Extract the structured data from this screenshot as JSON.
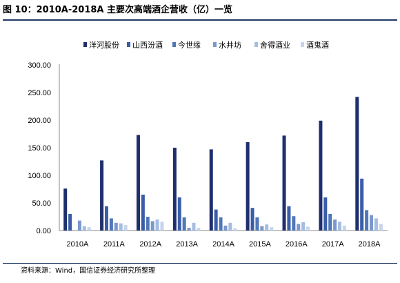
{
  "figure": {
    "title": "图 10：2010A-2018A 主要次高端酒企营收（亿）一览",
    "source": "资料来源：Wind，国信证券经济研究所整理"
  },
  "colors": {
    "rule": "#1f3864",
    "axis": "#888888",
    "series": [
      "#1f2f6e",
      "#3a5da8",
      "#5077b8",
      "#7b98cc",
      "#a6bde2",
      "#c7d4ec"
    ]
  },
  "chart_data": {
    "type": "bar",
    "title": "",
    "xlabel": "",
    "ylabel": "",
    "categories": [
      "2010A",
      "2011A",
      "2012A",
      "2013A",
      "2014A",
      "2015A",
      "2016A",
      "2017A",
      "2018A"
    ],
    "ylim": [
      0,
      300
    ],
    "yticks": [
      0,
      50,
      100,
      150,
      200,
      250,
      300
    ],
    "ytick_labels": [
      "0.00",
      "50.00",
      "100.00",
      "150.00",
      "200.00",
      "250.00",
      "300.00"
    ],
    "grid": false,
    "legend_position": "top",
    "series": [
      {
        "name": "洋河股份",
        "values": [
          76,
          127,
          173,
          150,
          147,
          160,
          172,
          199,
          242
        ]
      },
      {
        "name": "山西汾酒",
        "values": [
          30,
          44,
          65,
          60,
          38,
          41,
          44,
          60,
          94
        ]
      },
      {
        "name": "今世缘",
        "values": [
          0,
          22,
          25,
          24,
          24,
          24,
          26,
          30,
          37
        ]
      },
      {
        "name": "水井坊",
        "values": [
          18,
          14,
          17,
          5,
          9,
          8,
          12,
          20,
          28
        ]
      },
      {
        "name": "舍得酒业",
        "values": [
          8,
          13,
          20,
          14,
          14,
          11,
          15,
          16,
          22
        ]
      },
      {
        "name": "酒鬼酒",
        "values": [
          6,
          10,
          16,
          5,
          4,
          6,
          7,
          9,
          12
        ]
      }
    ]
  }
}
